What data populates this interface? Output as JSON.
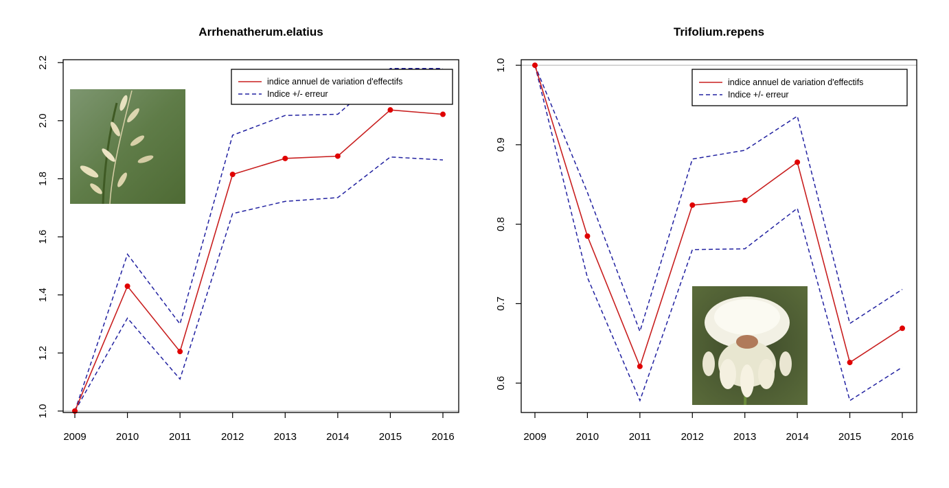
{
  "colors": {
    "index_line": "#c81e1e",
    "index_point": "#e00000",
    "error_line": "#2020a0",
    "reference_line": "#c8c8c8",
    "axis": "#000000"
  },
  "legend": {
    "index_label": "indice annuel de variation d'effectifs",
    "error_label": "Indice +/- erreur"
  },
  "chart_data": [
    {
      "type": "line",
      "title": "Arrhenatherum.elatius",
      "xlabel": "",
      "ylabel": "",
      "categories": [
        "2009",
        "2010",
        "2011",
        "2012",
        "2013",
        "2014",
        "2015",
        "2016"
      ],
      "ylim": [
        0.995,
        2.21
      ],
      "yticks": [
        "1.0",
        "1.2",
        "1.4",
        "1.6",
        "1.8",
        "2.0",
        "2.2"
      ],
      "reference_y": 1.0,
      "legend_position": "top-right",
      "grid": false,
      "photo": "oat-grass-spikelets-photo",
      "series": [
        {
          "name": "indice annuel de variation d'effectifs",
          "style": "solid-with-points",
          "values": [
            1.0,
            1.43,
            1.205,
            1.815,
            1.87,
            1.878,
            2.037,
            2.022
          ]
        },
        {
          "name": "Indice +/- erreur",
          "style": "dashed",
          "values": [
            1.0,
            1.54,
            1.3,
            1.95,
            2.018,
            2.022,
            2.18,
            2.18
          ]
        },
        {
          "style": "dashed",
          "values": [
            1.0,
            1.32,
            1.11,
            1.68,
            1.722,
            1.735,
            1.875,
            1.865
          ]
        }
      ]
    },
    {
      "type": "line",
      "title": "Trifolium.repens",
      "xlabel": "",
      "ylabel": "",
      "categories": [
        "2009",
        "2010",
        "2011",
        "2012",
        "2013",
        "2014",
        "2015",
        "2016"
      ],
      "ylim": [
        0.563,
        1.007
      ],
      "yticks": [
        "0.6",
        "0.7",
        "0.8",
        "0.9",
        "1.0"
      ],
      "reference_y": 1.0,
      "legend_position": "top-right",
      "grid": false,
      "photo": "white-clover-flower-photo",
      "series": [
        {
          "name": "indice annuel de variation d'effectifs",
          "style": "solid-with-points",
          "values": [
            1.0,
            0.785,
            0.621,
            0.824,
            0.83,
            0.878,
            0.626,
            0.669
          ]
        },
        {
          "name": "Indice +/- erreur",
          "style": "dashed",
          "values": [
            1.0,
            0.84,
            0.665,
            0.882,
            0.893,
            0.936,
            0.675,
            0.718
          ]
        },
        {
          "style": "dashed",
          "values": [
            1.0,
            0.733,
            0.578,
            0.768,
            0.769,
            0.82,
            0.578,
            0.62
          ]
        }
      ]
    }
  ]
}
